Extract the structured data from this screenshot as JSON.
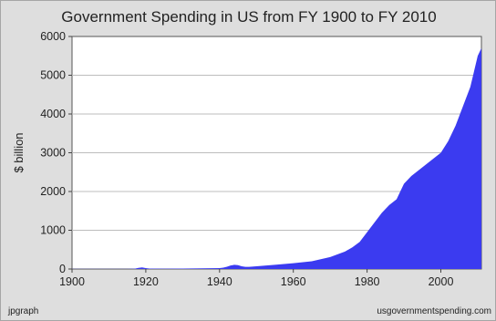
{
  "chart_data": {
    "type": "area",
    "title": "Government Spending in US from FY 1900 to FY 2010",
    "xlabel": "",
    "ylabel": "$ billion",
    "xlim": [
      1900,
      2011
    ],
    "ylim": [
      0,
      6000
    ],
    "xticks": [
      "1900",
      "1920",
      "1940",
      "1960",
      "1980",
      "2000"
    ],
    "yticks": [
      "0",
      "1000",
      "2000",
      "3000",
      "4000",
      "5000",
      "6000"
    ],
    "grid": "horizontal",
    "legend": "none",
    "fill_color": "#3b3bf0",
    "series": [
      {
        "x": [
          1900,
          1905,
          1910,
          1915,
          1917,
          1918,
          1919,
          1920,
          1921,
          1925,
          1930,
          1935,
          1940,
          1941,
          1942,
          1943,
          1944,
          1945,
          1946,
          1947,
          1948,
          1950,
          1955,
          1960,
          1965,
          1970,
          1972,
          1974,
          1976,
          1978,
          1980,
          1982,
          1984,
          1986,
          1988,
          1990,
          1991,
          1992,
          1994,
          1996,
          1998,
          2000,
          2002,
          2004,
          2006,
          2008,
          2009,
          2010,
          2011
        ],
        "y": [
          2,
          2,
          3,
          3,
          10,
          30,
          40,
          25,
          12,
          10,
          12,
          18,
          25,
          35,
          60,
          90,
          110,
          100,
          70,
          55,
          55,
          70,
          110,
          150,
          200,
          310,
          380,
          450,
          560,
          700,
          950,
          1200,
          1450,
          1650,
          1800,
          2200,
          2300,
          2400,
          2550,
          2700,
          2850,
          3000,
          3300,
          3700,
          4200,
          4700,
          5100,
          5500,
          5700
        ]
      }
    ]
  },
  "footer": {
    "left": "jpgraph",
    "right": "usgovernmentspending.com"
  }
}
